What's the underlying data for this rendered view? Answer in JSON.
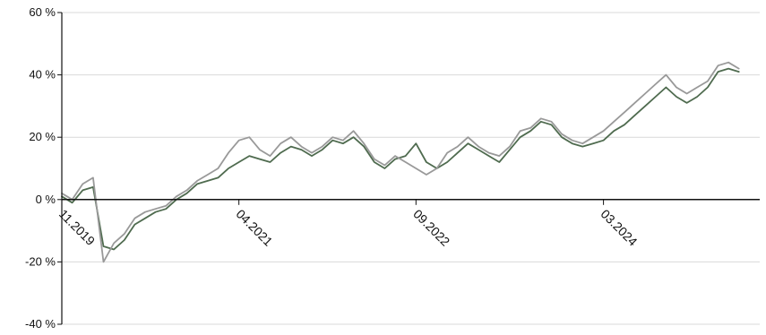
{
  "chart_data": {
    "type": "line",
    "title": "",
    "xlabel": "",
    "ylabel": "",
    "x_axis": {
      "start": "2019-11",
      "end": "2025-06",
      "tick_labels": [
        "11.2019",
        "04.2021",
        "09.2022",
        "03.2024"
      ],
      "tick_positions": [
        "2019-11",
        "2021-04",
        "2022-09",
        "2024-03"
      ]
    },
    "y_axis": {
      "ylim": [
        -40,
        60
      ],
      "ticks": [
        -40,
        -20,
        0,
        20,
        40,
        60
      ],
      "tick_labels": [
        "-40 %",
        "-20 %",
        "0 %",
        "20 %",
        "40 %",
        "60 %"
      ],
      "grid": true
    },
    "legend": "none",
    "series": [
      {
        "color": "#4f6b4f",
        "points": [
          [
            "2019-11",
            1
          ],
          [
            "2019-12",
            -1
          ],
          [
            "2020-01",
            3
          ],
          [
            "2020-02",
            4
          ],
          [
            "2020-03",
            -15
          ],
          [
            "2020-04",
            -16
          ],
          [
            "2020-05",
            -13
          ],
          [
            "2020-06",
            -8
          ],
          [
            "2020-07",
            -6
          ],
          [
            "2020-08",
            -4
          ],
          [
            "2020-09",
            -3
          ],
          [
            "2020-10",
            0
          ],
          [
            "2020-11",
            2
          ],
          [
            "2020-12",
            5
          ],
          [
            "2021-01",
            6
          ],
          [
            "2021-02",
            7
          ],
          [
            "2021-03",
            10
          ],
          [
            "2021-04",
            12
          ],
          [
            "2021-05",
            14
          ],
          [
            "2021-06",
            13
          ],
          [
            "2021-07",
            12
          ],
          [
            "2021-08",
            15
          ],
          [
            "2021-09",
            17
          ],
          [
            "2021-10",
            16
          ],
          [
            "2021-11",
            14
          ],
          [
            "2021-12",
            16
          ],
          [
            "2022-01",
            19
          ],
          [
            "2022-02",
            18
          ],
          [
            "2022-03",
            20
          ],
          [
            "2022-04",
            17
          ],
          [
            "2022-05",
            12
          ],
          [
            "2022-06",
            10
          ],
          [
            "2022-07",
            13
          ],
          [
            "2022-08",
            14
          ],
          [
            "2022-09",
            18
          ],
          [
            "2022-10",
            12
          ],
          [
            "2022-11",
            10
          ],
          [
            "2022-12",
            12
          ],
          [
            "2023-01",
            15
          ],
          [
            "2023-02",
            18
          ],
          [
            "2023-03",
            16
          ],
          [
            "2023-04",
            14
          ],
          [
            "2023-05",
            12
          ],
          [
            "2023-06",
            16
          ],
          [
            "2023-07",
            20
          ],
          [
            "2023-08",
            22
          ],
          [
            "2023-09",
            25
          ],
          [
            "2023-10",
            24
          ],
          [
            "2023-11",
            20
          ],
          [
            "2023-12",
            18
          ],
          [
            "2024-01",
            17
          ],
          [
            "2024-02",
            18
          ],
          [
            "2024-03",
            19
          ],
          [
            "2024-04",
            22
          ],
          [
            "2024-05",
            24
          ],
          [
            "2024-06",
            27
          ],
          [
            "2024-07",
            30
          ],
          [
            "2024-08",
            33
          ],
          [
            "2024-09",
            36
          ],
          [
            "2024-10",
            33
          ],
          [
            "2024-11",
            31
          ],
          [
            "2024-12",
            33
          ],
          [
            "2025-01",
            36
          ],
          [
            "2025-02",
            41
          ],
          [
            "2025-03",
            42
          ],
          [
            "2025-04",
            41
          ]
        ]
      },
      {
        "color": "#999999",
        "points": [
          [
            "2019-11",
            2
          ],
          [
            "2019-12",
            0
          ],
          [
            "2020-01",
            5
          ],
          [
            "2020-02",
            7
          ],
          [
            "2020-03",
            -20
          ],
          [
            "2020-04",
            -14
          ],
          [
            "2020-05",
            -11
          ],
          [
            "2020-06",
            -6
          ],
          [
            "2020-07",
            -4
          ],
          [
            "2020-08",
            -3
          ],
          [
            "2020-09",
            -2
          ],
          [
            "2020-10",
            1
          ],
          [
            "2020-11",
            3
          ],
          [
            "2020-12",
            6
          ],
          [
            "2021-01",
            8
          ],
          [
            "2021-02",
            10
          ],
          [
            "2021-03",
            15
          ],
          [
            "2021-04",
            19
          ],
          [
            "2021-05",
            20
          ],
          [
            "2021-06",
            16
          ],
          [
            "2021-07",
            14
          ],
          [
            "2021-08",
            18
          ],
          [
            "2021-09",
            20
          ],
          [
            "2021-10",
            17
          ],
          [
            "2021-11",
            15
          ],
          [
            "2021-12",
            17
          ],
          [
            "2022-01",
            20
          ],
          [
            "2022-02",
            19
          ],
          [
            "2022-03",
            22
          ],
          [
            "2022-04",
            18
          ],
          [
            "2022-05",
            13
          ],
          [
            "2022-06",
            11
          ],
          [
            "2022-07",
            14
          ],
          [
            "2022-08",
            12
          ],
          [
            "2022-09",
            10
          ],
          [
            "2022-10",
            8
          ],
          [
            "2022-11",
            10
          ],
          [
            "2022-12",
            15
          ],
          [
            "2023-01",
            17
          ],
          [
            "2023-02",
            20
          ],
          [
            "2023-03",
            17
          ],
          [
            "2023-04",
            15
          ],
          [
            "2023-05",
            14
          ],
          [
            "2023-06",
            17
          ],
          [
            "2023-07",
            22
          ],
          [
            "2023-08",
            23
          ],
          [
            "2023-09",
            26
          ],
          [
            "2023-10",
            25
          ],
          [
            "2023-11",
            21
          ],
          [
            "2023-12",
            19
          ],
          [
            "2024-01",
            18
          ],
          [
            "2024-02",
            20
          ],
          [
            "2024-03",
            22
          ],
          [
            "2024-04",
            25
          ],
          [
            "2024-05",
            28
          ],
          [
            "2024-06",
            31
          ],
          [
            "2024-07",
            34
          ],
          [
            "2024-08",
            37
          ],
          [
            "2024-09",
            40
          ],
          [
            "2024-10",
            36
          ],
          [
            "2024-11",
            34
          ],
          [
            "2024-12",
            36
          ],
          [
            "2025-01",
            38
          ],
          [
            "2025-02",
            43
          ],
          [
            "2025-03",
            44
          ],
          [
            "2025-04",
            42
          ]
        ]
      }
    ]
  }
}
